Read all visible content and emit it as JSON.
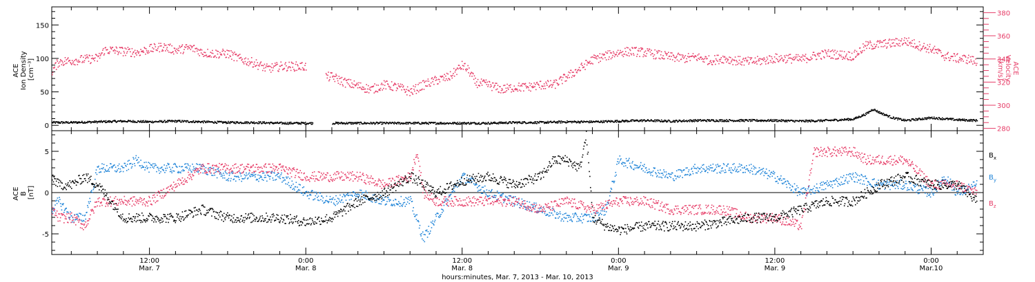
{
  "colors": {
    "ion_density": "#000000",
    "velocity": "#e63b66",
    "bx": "#000000",
    "by": "#1f84d8",
    "bz": "#e63b66",
    "axis": "#000000"
  },
  "x_axis": {
    "title": "hours:minutes, Mar.  7, 2013 - Mar. 10, 2013",
    "range_hours": [
      -19.5,
      52.0
    ],
    "ticks": [
      {
        "hour": -12,
        "time": "12:00",
        "date": "Mar. 7"
      },
      {
        "hour": 0,
        "time": "0:00",
        "date": "Mar. 8"
      },
      {
        "hour": 12,
        "time": "12:00",
        "date": "Mar. 8"
      },
      {
        "hour": 24,
        "time": "0:00",
        "date": "Mar. 9"
      },
      {
        "hour": 36,
        "time": "12:00",
        "date": "Mar. 9"
      },
      {
        "hour": 48,
        "time": "0:00",
        "date": "Mar.10"
      }
    ]
  },
  "top_panel": {
    "left_label_lines": [
      "ACE",
      "Ion Density",
      "[cm⁻³]"
    ],
    "right_label_lines": [
      "ACE",
      "Velocity",
      "[km/s]"
    ],
    "left_ticks": [
      "0",
      "50",
      "100",
      "150"
    ],
    "right_ticks": [
      "280",
      "300",
      "320",
      "340",
      "360",
      "380"
    ]
  },
  "bottom_panel": {
    "left_label_lines": [
      "ACE",
      "B",
      "[nT]"
    ],
    "left_ticks": [
      "-5",
      "0",
      "5"
    ],
    "legend": [
      {
        "label": "B",
        "sub": "x",
        "series": "bx"
      },
      {
        "label": "B",
        "sub": "y",
        "series": "by"
      },
      {
        "label": "B",
        "sub": "z",
        "series": "bz"
      }
    ]
  },
  "chart_data": [
    {
      "type": "scatter",
      "panel": "top",
      "x_unit": "hours relative to 2013-03-08 00:00 UT",
      "series": [
        {
          "name": "Ion Density",
          "axis": "left",
          "x": [
            -19.5,
            -18,
            -16,
            -14,
            -12,
            -10,
            -8,
            -6,
            -4,
            -2,
            0.5,
            1.5,
            2,
            4,
            6,
            8,
            10,
            12,
            14,
            16,
            18,
            20,
            22,
            24,
            26,
            28,
            30,
            32,
            34,
            36,
            38,
            40,
            42,
            43,
            43.5,
            44,
            45,
            46,
            48,
            50,
            51.5
          ],
          "values": [
            5,
            5,
            6,
            7,
            6,
            7,
            6,
            5,
            5,
            4,
            4,
            null,
            4,
            4,
            4,
            4,
            4,
            4,
            4,
            5,
            5,
            6,
            6,
            7,
            8,
            7,
            8,
            8,
            8,
            8,
            7,
            8,
            10,
            18,
            25,
            20,
            12,
            8,
            12,
            9,
            8
          ]
        },
        {
          "name": "Velocity",
          "axis": "right",
          "ylim": [
            278,
            385
          ],
          "x": [
            -19.5,
            -19,
            -18,
            -17,
            -16,
            -15.5,
            -15,
            -14,
            -13,
            -12,
            -11,
            -10,
            -9,
            -8.5,
            -8,
            -7,
            -6,
            -5,
            -4,
            -3,
            -2,
            -1,
            0,
            0.5,
            1.5,
            2,
            3,
            4,
            5,
            6,
            7,
            8,
            9,
            10,
            11,
            12,
            12.5,
            13,
            14,
            15,
            16,
            17,
            18,
            19,
            20,
            21,
            22,
            23,
            24,
            25,
            26,
            27,
            28,
            29,
            30,
            31,
            32,
            33,
            34,
            35,
            36,
            37,
            38,
            39,
            40,
            41,
            42,
            43,
            44,
            45,
            46,
            47,
            48,
            49,
            50,
            51,
            51.5
          ],
          "values": [
            330,
            338,
            339,
            340,
            341,
            348,
            348,
            347,
            346,
            349,
            351,
            348,
            350,
            349,
            346,
            345,
            345,
            340,
            337,
            332,
            334,
            334,
            334,
            null,
            325,
            325,
            320,
            317,
            314,
            318,
            316,
            312,
            318,
            322,
            325,
            335,
            330,
            320,
            318,
            314,
            316,
            316,
            318,
            318,
            325,
            332,
            340,
            343,
            346,
            347,
            346,
            344,
            342,
            341,
            342,
            339,
            341,
            339,
            338,
            339,
            341,
            341,
            340,
            343,
            345,
            344,
            343,
            352,
            353,
            354,
            356,
            352,
            349,
            343,
            341,
            340,
            337
          ]
        }
      ]
    },
    {
      "type": "scatter",
      "panel": "bottom",
      "ylim": [
        -7.5,
        7.5
      ],
      "x_unit": "hours relative to 2013-03-08 00:00 UT",
      "series": [
        {
          "name": "Bx",
          "x": [
            -19.5,
            -19,
            -18,
            -17,
            -16,
            -14,
            -12,
            -10,
            -8,
            -6,
            -4,
            -2,
            0,
            2,
            4,
            6,
            8,
            10,
            12,
            14,
            16,
            18,
            19,
            20,
            21,
            21.5,
            22,
            23,
            24,
            26,
            28,
            30,
            32,
            34,
            36,
            38,
            40,
            42,
            44,
            46,
            48,
            50,
            51.5
          ],
          "values": [
            2,
            1,
            1,
            2,
            1,
            -3,
            -3,
            -3,
            -2,
            -3,
            -3,
            -3,
            -3.5,
            -3,
            -1,
            0,
            2,
            0,
            1.5,
            2,
            1,
            2,
            4,
            4,
            3,
            7,
            -3,
            -4,
            -4.5,
            -4,
            -4,
            -4,
            -3.5,
            -3,
            -3,
            -2,
            -1,
            -1,
            1,
            2,
            1,
            1,
            -1
          ]
        },
        {
          "name": "By",
          "x": [
            -19.5,
            -19,
            -18,
            -17,
            -16,
            -14,
            -13,
            -12,
            -10,
            -8,
            -6,
            -4,
            -2,
            0,
            2,
            4,
            6,
            8,
            9,
            10,
            12,
            14,
            16,
            18,
            20,
            22,
            23,
            24,
            26,
            28,
            30,
            32,
            34,
            36,
            38,
            40,
            42,
            44,
            46,
            48,
            49,
            50,
            51.5
          ],
          "values": [
            -2,
            -1,
            -3,
            -3,
            3,
            3,
            4,
            3,
            3,
            3,
            2,
            2,
            2,
            0,
            -1,
            0,
            -1,
            -1,
            -5.5,
            -3,
            2,
            0,
            -1,
            -2,
            -3,
            -3,
            -2,
            4,
            3,
            2,
            3,
            3,
            3,
            2,
            0,
            1,
            2,
            1,
            1,
            0,
            2,
            0,
            1
          ]
        },
        {
          "name": "Bz",
          "x": [
            -19.5,
            -19,
            -18,
            -17,
            -16,
            -14,
            -12,
            -10,
            -8,
            -6,
            -4,
            -2,
            0,
            2,
            4,
            6,
            8,
            8.5,
            9,
            10,
            12,
            14,
            16,
            18,
            20,
            22,
            24,
            26,
            28,
            30,
            32,
            34,
            36,
            38,
            39,
            40,
            42,
            43,
            44,
            46,
            48,
            49,
            50,
            51.5
          ],
          "values": [
            -2,
            -3,
            -3,
            -4,
            -1,
            -1,
            -1,
            1,
            3,
            3,
            3,
            3,
            2,
            2,
            2,
            1,
            2,
            5,
            0,
            -1,
            -1,
            -1,
            -1,
            -2,
            -1,
            -2,
            -1,
            -1,
            -2,
            -2,
            -2,
            -3,
            -3,
            -4,
            5,
            5,
            5,
            4,
            4,
            4,
            1,
            1,
            1,
            0
          ]
        }
      ]
    }
  ]
}
